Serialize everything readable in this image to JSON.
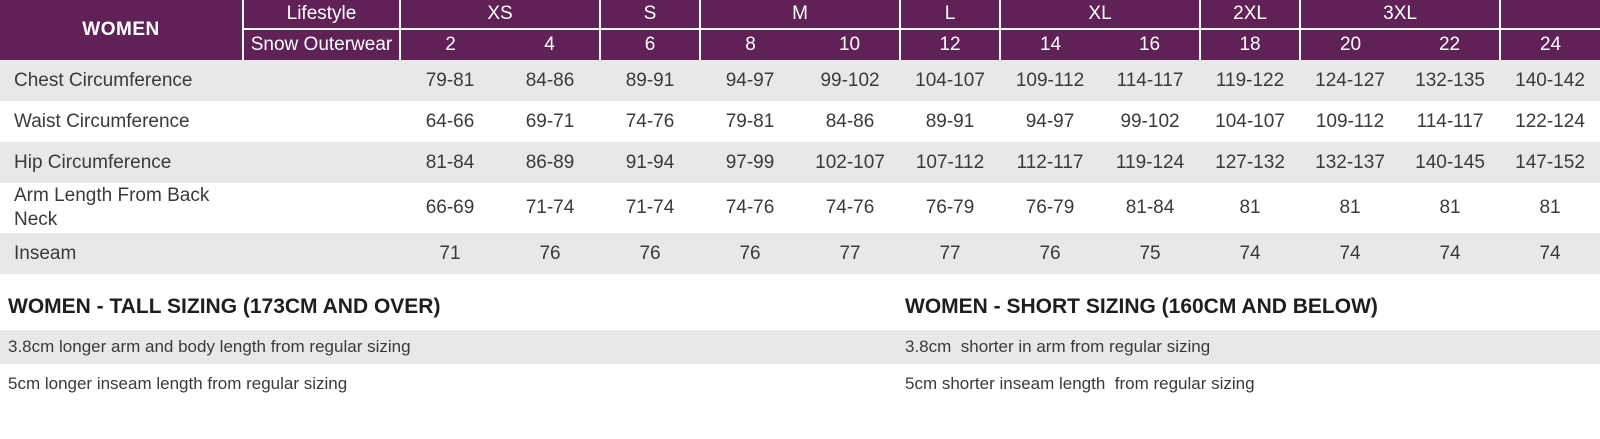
{
  "colors": {
    "header_purple": "#602157",
    "header_text": "#ffffff",
    "row_shaded": "#e8e8e8",
    "body_text": "#3a3a3a",
    "heading_text": "#1e1e1e"
  },
  "chart_data": {
    "type": "table",
    "title": "WOMEN",
    "header": {
      "corner_row1": "Lifestyle",
      "corner_row2": "Snow Outerwear",
      "size_groups": [
        {
          "label": "XS",
          "span": 2
        },
        {
          "label": "S",
          "span": 1
        },
        {
          "label": "M",
          "span": 2
        },
        {
          "label": "L",
          "span": 1
        },
        {
          "label": "XL",
          "span": 2
        },
        {
          "label": "2XL",
          "span": 1
        },
        {
          "label": "3XL",
          "span": 2
        },
        {
          "label": "",
          "span": 1
        }
      ],
      "sizes": [
        "2",
        "4",
        "6",
        "8",
        "10",
        "12",
        "14",
        "16",
        "18",
        "20",
        "22",
        "24"
      ]
    },
    "rows": [
      {
        "label": "Chest Circumference",
        "values": [
          "79-81",
          "84-86",
          "89-91",
          "94-97",
          "99-102",
          "104-107",
          "109-112",
          "114-117",
          "119-122",
          "124-127",
          "132-135",
          "140-142"
        ]
      },
      {
        "label": "Waist Circumference",
        "values": [
          "64-66",
          "69-71",
          "74-76",
          "79-81",
          "84-86",
          "89-91",
          "94-97",
          "99-102",
          "104-107",
          "109-112",
          "114-117",
          "122-124"
        ]
      },
      {
        "label": "Hip Circumference",
        "values": [
          "81-84",
          "86-89",
          "91-94",
          "97-99",
          "102-107",
          "107-112",
          "112-117",
          "119-124",
          "127-132",
          "132-137",
          "140-145",
          "147-152"
        ]
      },
      {
        "label": "Arm Length From Back Neck",
        "values": [
          "66-69",
          "71-74",
          "71-74",
          "74-76",
          "74-76",
          "76-79",
          "76-79",
          "81-84",
          "81",
          "81",
          "81",
          "81"
        ]
      },
      {
        "label": "Inseam",
        "values": [
          "71",
          "76",
          "76",
          "76",
          "77",
          "77",
          "76",
          "75",
          "74",
          "74",
          "74",
          "74"
        ]
      }
    ],
    "footnotes": {
      "tall": {
        "heading": "WOMEN - TALL SIZING (173CM AND OVER)",
        "notes": [
          "3.8cm longer arm and body length from regular sizing",
          "5cm longer inseam length from regular sizing"
        ]
      },
      "short": {
        "heading": "WOMEN - SHORT SIZING (160CM AND BELOW)",
        "notes": [
          "3.8cm  shorter in arm from regular sizing",
          "5cm shorter inseam length  from regular sizing"
        ]
      }
    }
  }
}
